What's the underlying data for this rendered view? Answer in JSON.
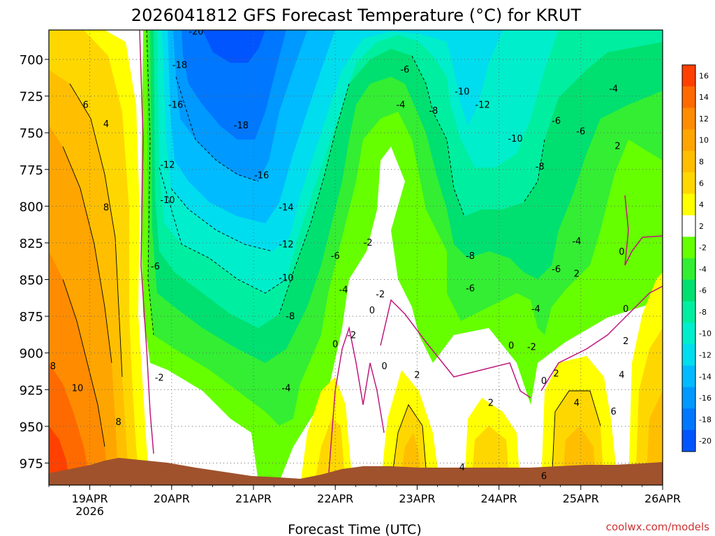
{
  "chart_data": {
    "type": "heatmap",
    "title": "2026041812 GFS Forecast Temperature (°C) for KRUT",
    "xlabel": "Forecast Time (UTC)",
    "ylabel": "",
    "x_ticks": [
      "19APR",
      "20APR",
      "21APR",
      "22APR",
      "23APR",
      "24APR",
      "25APR",
      "26APR"
    ],
    "x_year_label": "2026",
    "x_range_days": [
      18.5,
      26.0
    ],
    "y_ticks": [
      700,
      725,
      750,
      775,
      800,
      825,
      850,
      875,
      900,
      925,
      950,
      975
    ],
    "y_range_hpa": [
      680,
      990
    ],
    "colorbar_levels": [
      16,
      14,
      12,
      10,
      8,
      6,
      4,
      2,
      -2,
      -4,
      -6,
      -8,
      -10,
      -12,
      -14,
      -16,
      -18,
      -20
    ],
    "colorbar_colors": [
      "#ff4000",
      "#ff6a00",
      "#ff8c00",
      "#ffa500",
      "#ffbf00",
      "#ffd700",
      "#ffff00",
      "#ffffff",
      "#66ff00",
      "#33ee33",
      "#00e070",
      "#00eea0",
      "#00eecc",
      "#00ddee",
      "#00bbff",
      "#0099ff",
      "#0077ff",
      "#0055ff"
    ],
    "contour_labels": [
      {
        "text": "-20",
        "x": 20.3,
        "p": 683
      },
      {
        "text": "-18",
        "x": 20.1,
        "p": 706
      },
      {
        "text": "-16",
        "x": 20.05,
        "p": 733
      },
      {
        "text": "-18",
        "x": 20.85,
        "p": 747
      },
      {
        "text": "-12",
        "x": 19.95,
        "p": 774
      },
      {
        "text": "-16",
        "x": 21.1,
        "p": 781
      },
      {
        "text": "-10",
        "x": 19.95,
        "p": 798
      },
      {
        "text": "-14",
        "x": 21.4,
        "p": 803
      },
      {
        "text": "-12",
        "x": 21.4,
        "p": 828
      },
      {
        "text": "-10",
        "x": 21.4,
        "p": 851
      },
      {
        "text": "-8",
        "x": 21.45,
        "p": 877
      },
      {
        "text": "-6",
        "x": 19.8,
        "p": 843
      },
      {
        "text": "-4",
        "x": 21.4,
        "p": 926
      },
      {
        "text": "-2",
        "x": 19.85,
        "p": 919
      },
      {
        "text": "6",
        "x": 18.95,
        "p": 733
      },
      {
        "text": "4",
        "x": 19.2,
        "p": 746
      },
      {
        "text": "8",
        "x": 19.2,
        "p": 803
      },
      {
        "text": "8",
        "x": 18.55,
        "p": 911
      },
      {
        "text": "10",
        "x": 18.85,
        "p": 926
      },
      {
        "text": "8",
        "x": 19.35,
        "p": 949
      },
      {
        "text": "-6",
        "x": 22.85,
        "p": 709
      },
      {
        "text": "-4",
        "x": 22.8,
        "p": 733
      },
      {
        "text": "-8",
        "x": 23.2,
        "p": 737
      },
      {
        "text": "-10",
        "x": 23.55,
        "p": 724
      },
      {
        "text": "-12",
        "x": 23.8,
        "p": 733
      },
      {
        "text": "-10",
        "x": 24.2,
        "p": 756
      },
      {
        "text": "-8",
        "x": 24.5,
        "p": 775
      },
      {
        "text": "-6",
        "x": 24.7,
        "p": 744
      },
      {
        "text": "-6",
        "x": 25.0,
        "p": 751
      },
      {
        "text": "-4",
        "x": 25.4,
        "p": 722
      },
      {
        "text": "2",
        "x": 25.45,
        "p": 761
      },
      {
        "text": "-2",
        "x": 22.4,
        "p": 827
      },
      {
        "text": "-6",
        "x": 22.0,
        "p": 836
      },
      {
        "text": "-4",
        "x": 22.1,
        "p": 859
      },
      {
        "text": "-2",
        "x": 22.55,
        "p": 862
      },
      {
        "text": "0",
        "x": 22.45,
        "p": 873
      },
      {
        "text": "-2",
        "x": 22.2,
        "p": 890
      },
      {
        "text": "0",
        "x": 22.0,
        "p": 896
      },
      {
        "text": "0",
        "x": 22.6,
        "p": 911
      },
      {
        "text": "2",
        "x": 23.0,
        "p": 917
      },
      {
        "text": "-8",
        "x": 23.65,
        "p": 836
      },
      {
        "text": "-6",
        "x": 23.65,
        "p": 858
      },
      {
        "text": "-4",
        "x": 24.45,
        "p": 872
      },
      {
        "text": "-6",
        "x": 24.7,
        "p": 845
      },
      {
        "text": "-4",
        "x": 24.95,
        "p": 826
      },
      {
        "text": "2",
        "x": 24.95,
        "p": 848
      },
      {
        "text": "0",
        "x": 25.5,
        "p": 833
      },
      {
        "text": "0",
        "x": 25.55,
        "p": 872
      },
      {
        "text": "0",
        "x": 24.15,
        "p": 897
      },
      {
        "text": "-2",
        "x": 24.4,
        "p": 898
      },
      {
        "text": "2",
        "x": 23.9,
        "p": 936
      },
      {
        "text": "0",
        "x": 24.55,
        "p": 921
      },
      {
        "text": "2",
        "x": 24.7,
        "p": 916
      },
      {
        "text": "4",
        "x": 24.95,
        "p": 936
      },
      {
        "text": "2",
        "x": 25.55,
        "p": 894
      },
      {
        "text": "4",
        "x": 25.5,
        "p": 917
      },
      {
        "text": "6",
        "x": 25.4,
        "p": 942
      },
      {
        "text": "4",
        "x": 23.55,
        "p": 980
      },
      {
        "text": "6",
        "x": 24.55,
        "p": 986
      }
    ],
    "colors": {
      "terrain": "#a0522d",
      "zero_line": "#c0187c"
    }
  },
  "watermark": "coolwx.com/models"
}
